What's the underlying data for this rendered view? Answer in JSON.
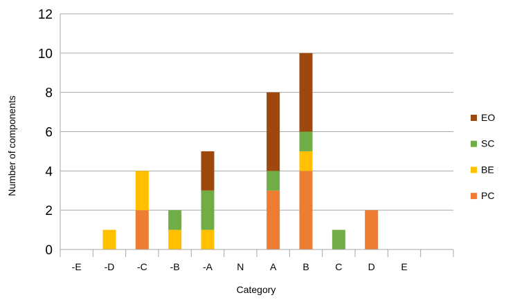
{
  "chart_data": {
    "type": "bar",
    "stacked": true,
    "categories": [
      "-E",
      "-D",
      "-C",
      "-B",
      "-A",
      "N",
      "A",
      "B",
      "C",
      "D",
      "E"
    ],
    "series": [
      {
        "name": "PC",
        "color": "#ED7D31",
        "values": [
          0,
          0,
          2,
          0,
          0,
          0,
          3,
          4,
          0,
          2,
          0
        ]
      },
      {
        "name": "BE",
        "color": "#FFC000",
        "values": [
          0,
          1,
          2,
          1,
          1,
          0,
          0,
          1,
          0,
          0,
          0
        ]
      },
      {
        "name": "SC",
        "color": "#70AD47",
        "values": [
          0,
          0,
          0,
          1,
          2,
          0,
          1,
          1,
          1,
          0,
          0
        ]
      },
      {
        "name": "EO",
        "color": "#9E480E",
        "values": [
          0,
          0,
          0,
          0,
          2,
          0,
          4,
          4,
          0,
          0,
          0
        ]
      }
    ],
    "legend_order": [
      "EO",
      "SC",
      "BE",
      "PC"
    ],
    "legend_position": "right",
    "xlabel": "Category",
    "ylabel": "Number of components",
    "ylim": [
      0,
      12
    ],
    "yticks": [
      0,
      2,
      4,
      6,
      8,
      10,
      12
    ],
    "grid": true
  }
}
